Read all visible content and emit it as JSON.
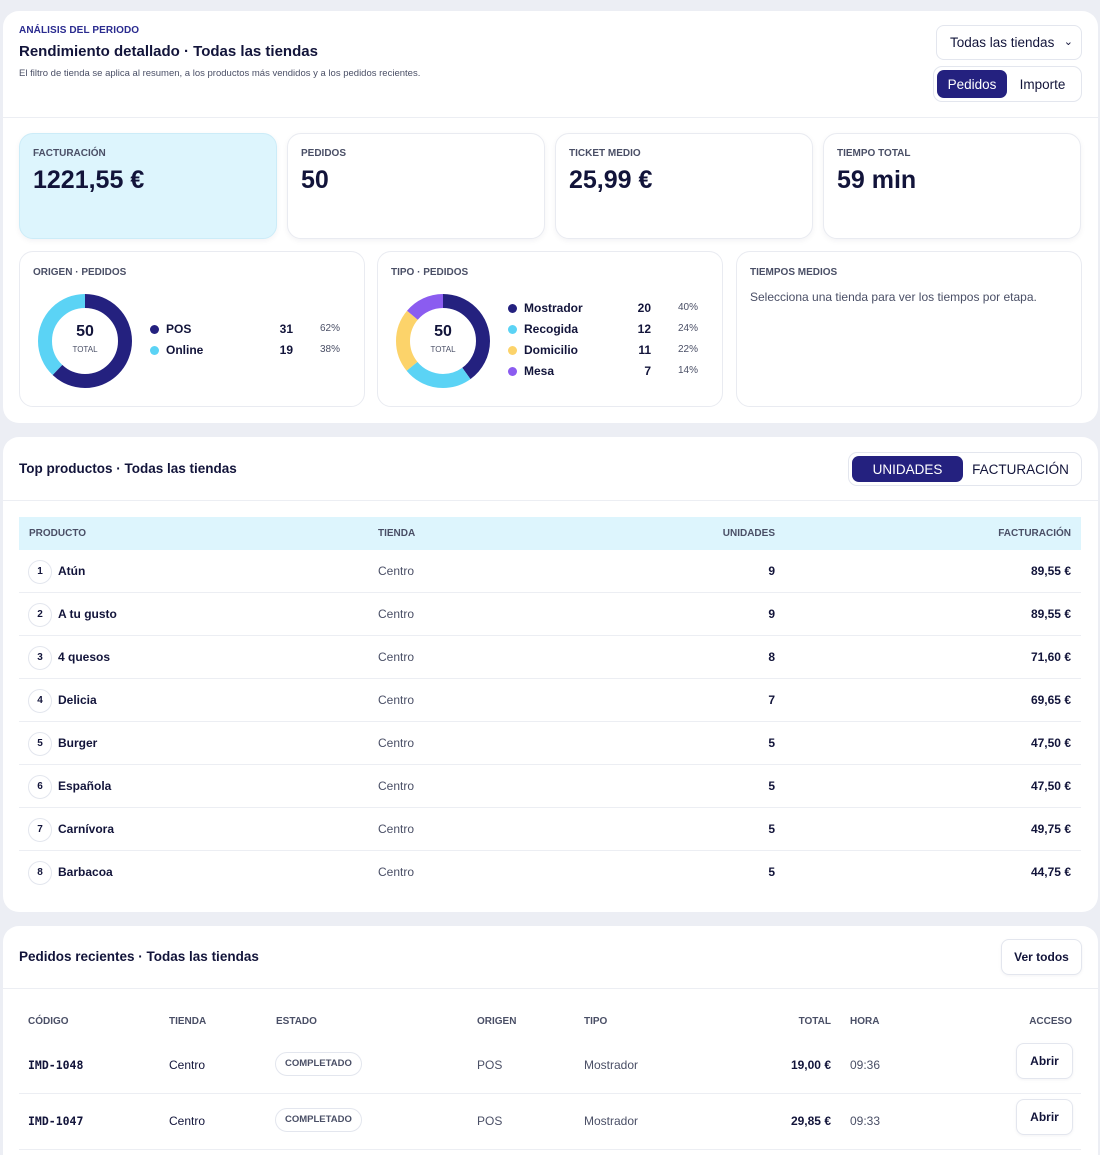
{
  "analysis": {
    "eyebrow": "ANÁLISIS DEL PERIODO",
    "title": "Rendimiento detallado · Todas las tiendas",
    "subtitle": "El filtro de tienda se aplica al resumen, a los productos más vendidos y a los pedidos recientes.",
    "store_select": "Todas las tiendas",
    "metric_toggle": [
      "Pedidos",
      "Importe"
    ],
    "metric_active": "Pedidos",
    "kpis": [
      {
        "label": "FACTURACIÓN",
        "value": "1221,55 €"
      },
      {
        "label": "PEDIDOS",
        "value": "50"
      },
      {
        "label": "TICKET MEDIO",
        "value": "25,99 €"
      },
      {
        "label": "TIEMPO TOTAL",
        "value": "59 min"
      }
    ],
    "origin": {
      "label": "ORIGEN · PEDIDOS",
      "total": "50",
      "total_label": "TOTAL",
      "items": [
        {
          "name": "POS",
          "count": "31",
          "pct": "62%",
          "color": "#24217f"
        },
        {
          "name": "Online",
          "count": "19",
          "pct": "38%",
          "color": "#5bd3f5"
        }
      ]
    },
    "type": {
      "label": "TIPO · PEDIDOS",
      "total": "50",
      "total_label": "TOTAL",
      "items": [
        {
          "name": "Mostrador",
          "count": "20",
          "pct": "40%",
          "color": "#24217f"
        },
        {
          "name": "Recogida",
          "count": "12",
          "pct": "24%",
          "color": "#5bd3f5"
        },
        {
          "name": "Domicilio",
          "count": "11",
          "pct": "22%",
          "color": "#fcd36a"
        },
        {
          "name": "Mesa",
          "count": "7",
          "pct": "14%",
          "color": "#8b5cf0"
        }
      ]
    },
    "times": {
      "label": "TIEMPOS MEDIOS",
      "text": "Selecciona una tienda para ver los tiempos por etapa."
    }
  },
  "products": {
    "title": "Top productos · Todas las tiendas",
    "toggle": [
      "UNIDADES",
      "FACTURACIÓN"
    ],
    "toggle_active": "UNIDADES",
    "columns": [
      "PRODUCTO",
      "TIENDA",
      "UNIDADES",
      "FACTURACIÓN"
    ],
    "rows": [
      {
        "rank": "1",
        "name": "Atún",
        "store": "Centro",
        "units": "9",
        "revenue": "89,55 €"
      },
      {
        "rank": "2",
        "name": "A tu gusto",
        "store": "Centro",
        "units": "9",
        "revenue": "89,55 €"
      },
      {
        "rank": "3",
        "name": "4 quesos",
        "store": "Centro",
        "units": "8",
        "revenue": "71,60 €"
      },
      {
        "rank": "4",
        "name": "Delicia",
        "store": "Centro",
        "units": "7",
        "revenue": "69,65 €"
      },
      {
        "rank": "5",
        "name": "Burger",
        "store": "Centro",
        "units": "5",
        "revenue": "47,50 €"
      },
      {
        "rank": "6",
        "name": "Española",
        "store": "Centro",
        "units": "5",
        "revenue": "47,50 €"
      },
      {
        "rank": "7",
        "name": "Carnívora",
        "store": "Centro",
        "units": "5",
        "revenue": "49,75 €"
      },
      {
        "rank": "8",
        "name": "Barbacoa",
        "store": "Centro",
        "units": "5",
        "revenue": "44,75 €"
      }
    ]
  },
  "orders": {
    "title": "Pedidos recientes · Todas las tiendas",
    "view_all": "Ver todos",
    "columns": [
      "CÓDIGO",
      "TIENDA",
      "ESTADO",
      "ORIGEN",
      "TIPO",
      "TOTAL",
      "HORA",
      "ACCESO"
    ],
    "rows": [
      {
        "code": "IMD-1048",
        "store": "Centro",
        "status": "COMPLETADO",
        "origin": "POS",
        "type": "Mostrador",
        "total": "19,00 €",
        "time": "09:36",
        "action": "Abrir"
      },
      {
        "code": "IMD-1047",
        "store": "Centro",
        "status": "COMPLETADO",
        "origin": "POS",
        "type": "Mostrador",
        "total": "29,85 €",
        "time": "09:33",
        "action": "Abrir"
      }
    ]
  }
}
